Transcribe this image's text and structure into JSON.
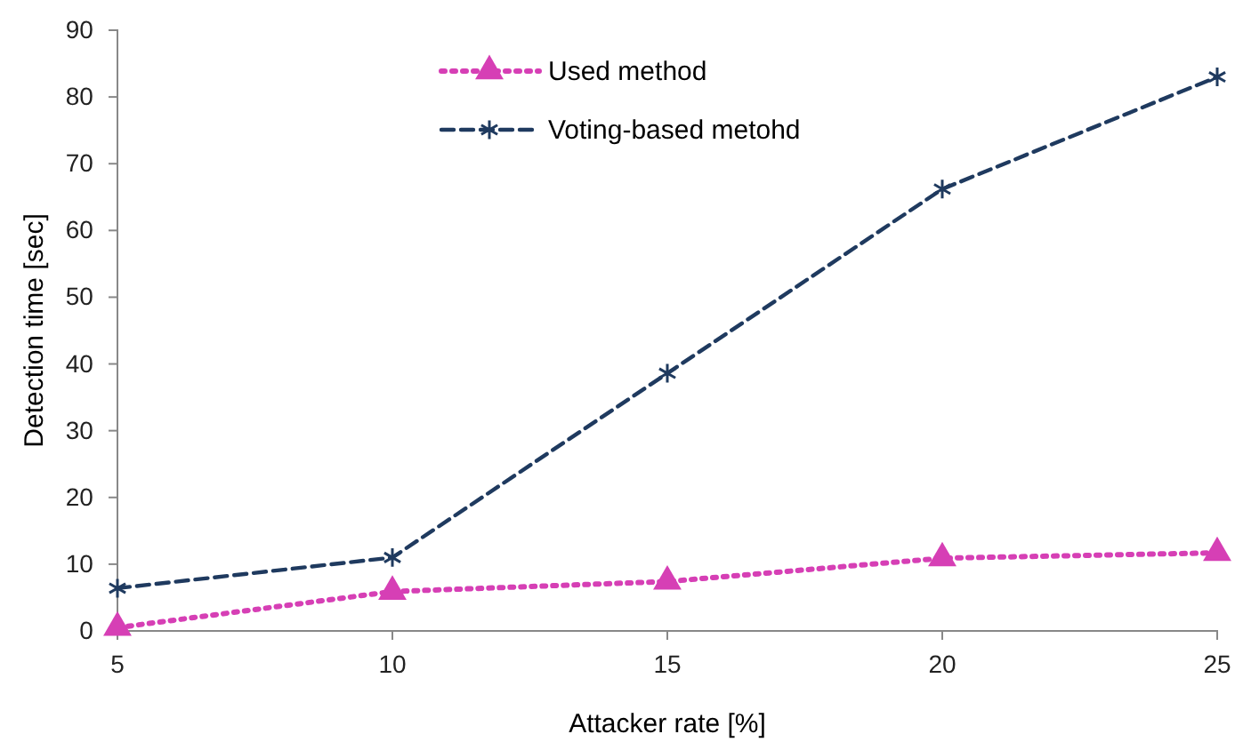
{
  "chart_data": {
    "type": "line",
    "xlabel": "Attacker rate [%]",
    "ylabel": "Detection time [sec]",
    "x": [
      5,
      10,
      15,
      20,
      25
    ],
    "xlim": [
      5,
      25
    ],
    "xticks": [
      5,
      10,
      15,
      20,
      25
    ],
    "ylim": [
      0,
      90
    ],
    "yticks": [
      0,
      10,
      20,
      30,
      40,
      50,
      60,
      70,
      80,
      90
    ],
    "legend": "top",
    "grid": false,
    "series": [
      {
        "name": "Used method",
        "color": "#d63fb5",
        "marker": "triangle",
        "line_style": "dotted",
        "values": [
          0.5,
          5.9,
          7.4,
          10.9,
          11.7
        ]
      },
      {
        "name": "Voting-based metohd",
        "color": "#1f3a5f",
        "marker": "cross",
        "line_style": "dashed",
        "values": [
          6.4,
          11,
          38.6,
          66.2,
          83
        ]
      }
    ]
  }
}
